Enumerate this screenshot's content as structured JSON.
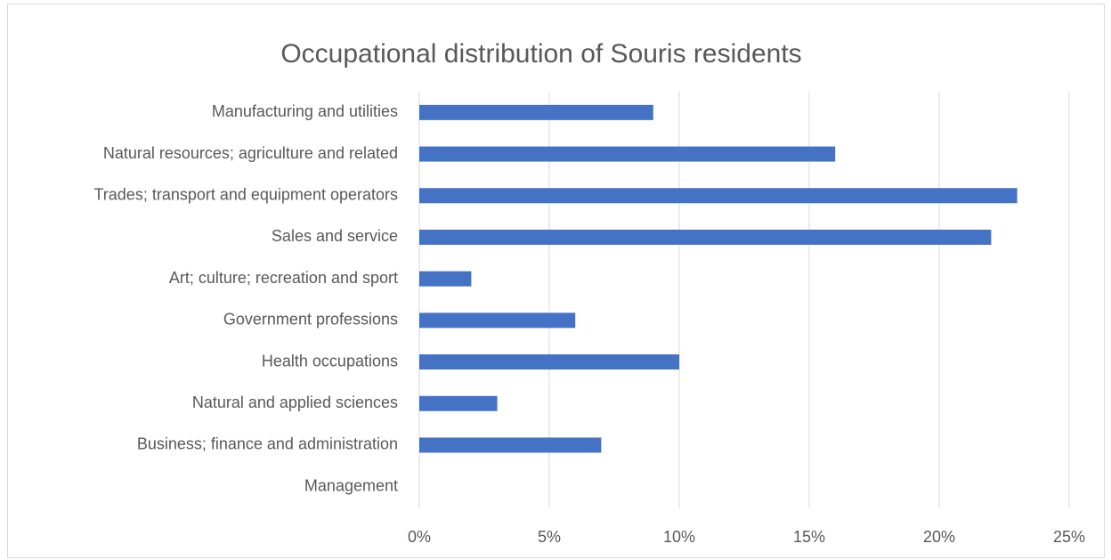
{
  "chart_data": {
    "type": "barh",
    "title": "Occupational distribution of Souris residents",
    "categories": [
      "Manufacturing and utilities",
      "Natural resources; agriculture and related",
      "Trades; transport and equipment operators",
      "Sales and service",
      "Art; culture; recreation and sport",
      "Government professions",
      "Health occupations",
      "Natural and applied sciences",
      "Business; finance and administration",
      "Management"
    ],
    "values": [
      9,
      16,
      23,
      22,
      2,
      6,
      10,
      3,
      7,
      0
    ],
    "color": "#4472c4",
    "xlim": [
      0,
      25
    ],
    "xticks": [
      {
        "value": 0,
        "label": "0%"
      },
      {
        "value": 5,
        "label": "5%"
      },
      {
        "value": 10,
        "label": "10%"
      },
      {
        "value": 15,
        "label": "15%"
      },
      {
        "value": 20,
        "label": "20%"
      },
      {
        "value": 25,
        "label": "25%"
      }
    ],
    "grid": true
  }
}
